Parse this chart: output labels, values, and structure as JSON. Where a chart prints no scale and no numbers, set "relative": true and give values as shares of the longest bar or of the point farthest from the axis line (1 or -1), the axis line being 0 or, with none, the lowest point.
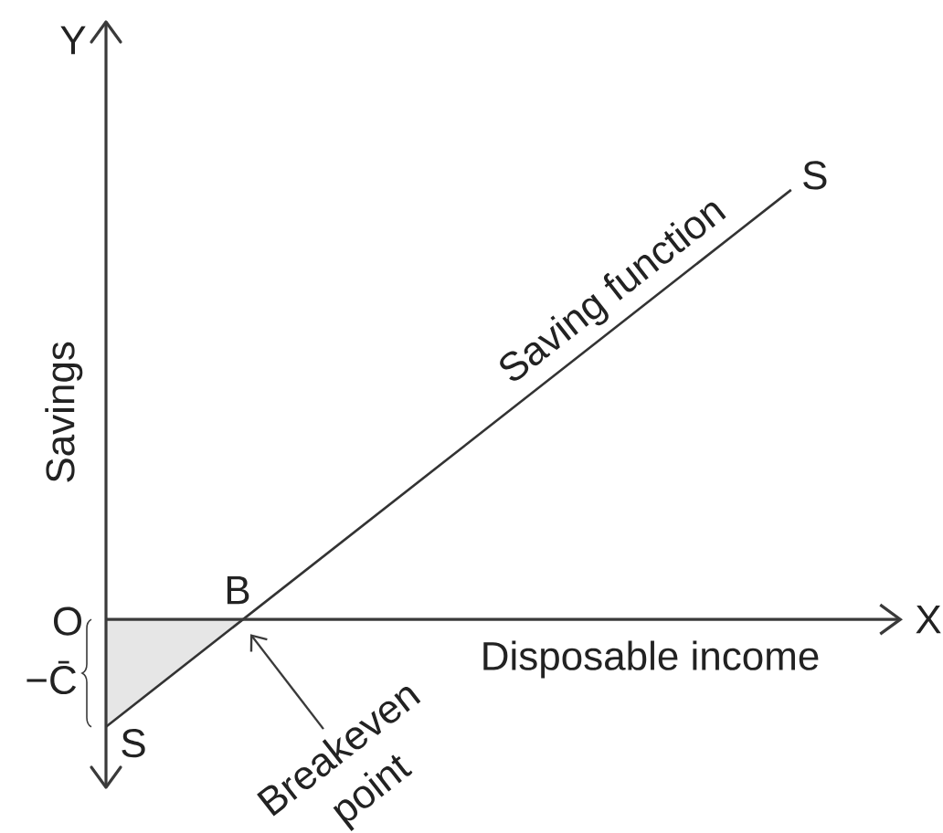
{
  "chart_data": {
    "type": "line",
    "xlabel": "Disposable income",
    "ylabel": "Savings",
    "relative": true,
    "tick_labels": false,
    "categories": [
      null,
      null,
      null,
      null,
      null,
      null
    ],
    "series": [
      {
        "type": "area",
        "color": "#e6e6e6",
        "values": [
          -0.25,
          0,
          null,
          null,
          null,
          null
        ]
      },
      {
        "name": "Saving function",
        "color": "#333333",
        "values": [
          -0.25,
          0,
          0.25,
          0.5,
          0.75,
          1
        ]
      }
    ],
    "annotations": [
      "Y",
      "X",
      "O",
      "−C̄",
      "B",
      "S",
      "S",
      "Breakeven point"
    ]
  }
}
